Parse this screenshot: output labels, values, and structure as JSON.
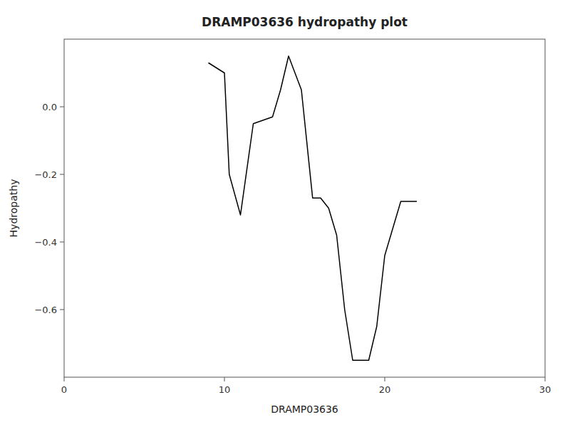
{
  "chart_data": {
    "type": "line",
    "title": "DRAMP03636 hydropathy plot",
    "xlabel": "DRAMP03636",
    "ylabel": "Hydropathy",
    "x": [
      9.0,
      10.0,
      10.3,
      11.0,
      11.8,
      13.0,
      13.5,
      14.0,
      14.8,
      15.5,
      16.0,
      16.5,
      17.0,
      17.5,
      18.0,
      19.0,
      19.5,
      20.0,
      21.0,
      22.0
    ],
    "values": [
      0.13,
      0.1,
      -0.2,
      -0.32,
      -0.05,
      -0.03,
      0.05,
      0.15,
      0.05,
      -0.27,
      -0.27,
      -0.3,
      -0.38,
      -0.6,
      -0.75,
      -0.75,
      -0.65,
      -0.44,
      -0.28,
      -0.28
    ],
    "color": "#000000",
    "xlim": [
      0,
      30
    ],
    "ylim": [
      -0.8,
      0.2
    ],
    "xticks": [
      0,
      10,
      20,
      30
    ],
    "yticks": [
      {
        "value": 0.0,
        "label": "0.0"
      },
      {
        "value": -0.2,
        "label": "−0.2"
      },
      {
        "value": -0.4,
        "label": "−0.4"
      },
      {
        "value": -0.6,
        "label": "−0.6"
      }
    ],
    "grid": false
  }
}
